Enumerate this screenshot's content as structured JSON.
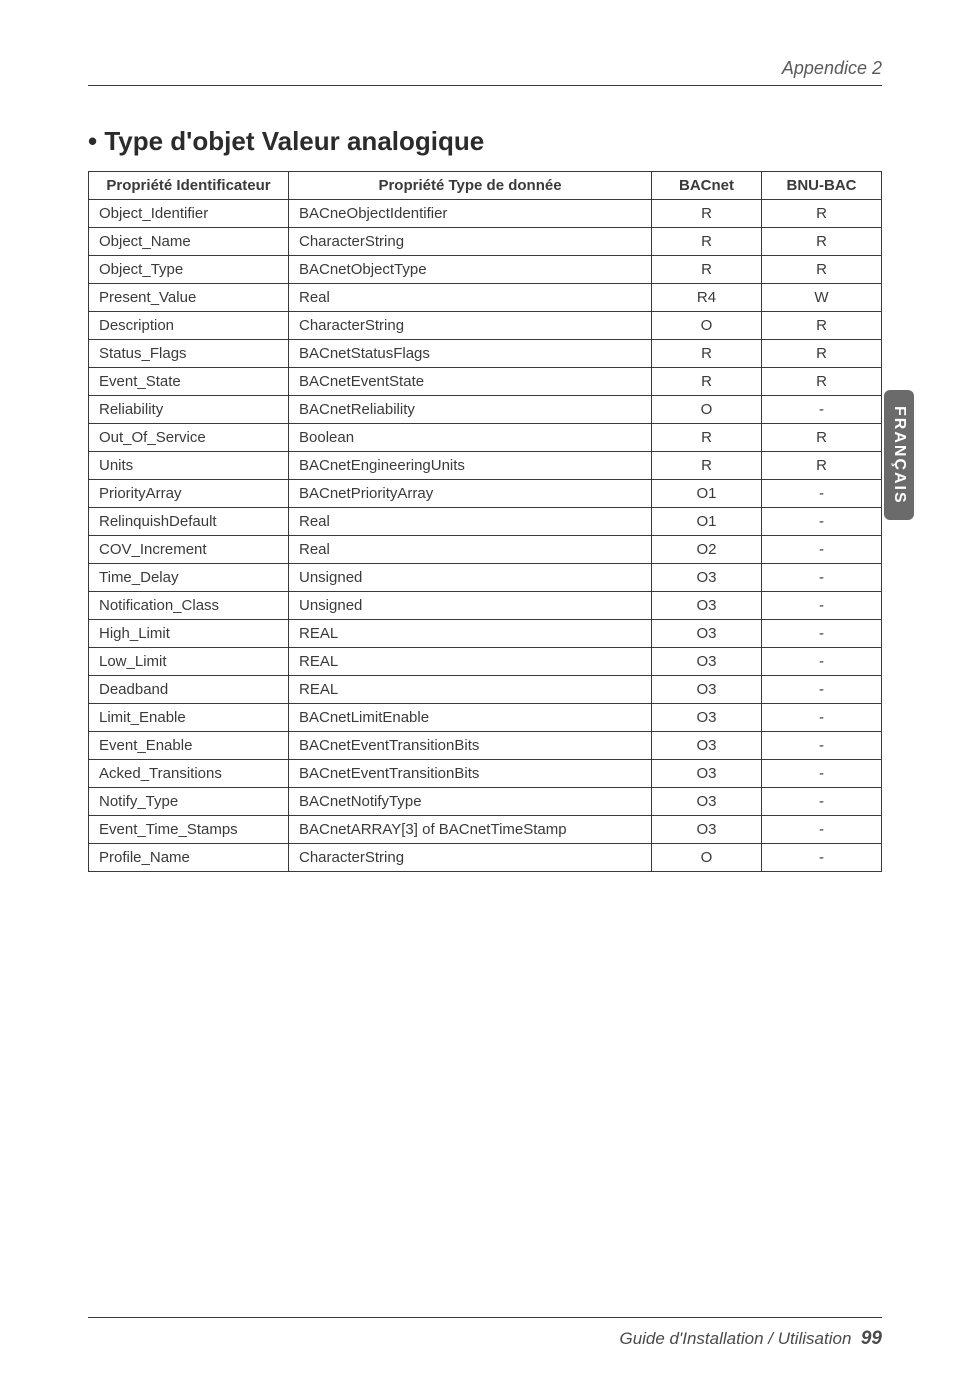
{
  "running_head": "Appendice 2",
  "section_title": "• Type d'objet Valeur analogique",
  "side_tab": "FRANÇAIS",
  "table": {
    "headers": [
      "Propriété Identificateur",
      "Propriété Type de donnée",
      "BACnet",
      "BNU-BAC"
    ],
    "rows": [
      [
        "Object_Identifier",
        "BACneObjectIdentifier",
        "R",
        "R"
      ],
      [
        "Object_Name",
        "CharacterString",
        "R",
        "R"
      ],
      [
        "Object_Type",
        "BACnetObjectType",
        "R",
        "R"
      ],
      [
        "Present_Value",
        "Real",
        "R4",
        "W"
      ],
      [
        "Description",
        "CharacterString",
        "O",
        "R"
      ],
      [
        "Status_Flags",
        "BACnetStatusFlags",
        "R",
        "R"
      ],
      [
        "Event_State",
        "BACnetEventState",
        "R",
        "R"
      ],
      [
        "Reliability",
        "BACnetReliability",
        "O",
        "-"
      ],
      [
        "Out_Of_Service",
        "Boolean",
        "R",
        "R"
      ],
      [
        "Units",
        "BACnetEngineeringUnits",
        "R",
        "R"
      ],
      [
        "PriorityArray",
        "BACnetPriorityArray",
        "O1",
        "-"
      ],
      [
        "RelinquishDefault",
        "Real",
        "O1",
        "-"
      ],
      [
        "COV_Increment",
        "Real",
        "O2",
        "-"
      ],
      [
        "Time_Delay",
        "Unsigned",
        "O3",
        "-"
      ],
      [
        "Notification_Class",
        "Unsigned",
        "O3",
        "-"
      ],
      [
        "High_Limit",
        "REAL",
        "O3",
        "-"
      ],
      [
        "Low_Limit",
        "REAL",
        "O3",
        "-"
      ],
      [
        "Deadband",
        "REAL",
        "O3",
        "-"
      ],
      [
        "Limit_Enable",
        "BACnetLimitEnable",
        "O3",
        "-"
      ],
      [
        "Event_Enable",
        "BACnetEventTransitionBits",
        "O3",
        "-"
      ],
      [
        "Acked_Transitions",
        "BACnetEventTransitionBits",
        "O3",
        "-"
      ],
      [
        "Notify_Type",
        "BACnetNotifyType",
        "O3",
        "-"
      ],
      [
        "Event_Time_Stamps",
        "BACnetARRAY[3] of BACnetTimeStamp",
        "O3",
        "-"
      ],
      [
        "Profile_Name",
        "CharacterString",
        "O",
        "-"
      ]
    ]
  },
  "footer": {
    "title": "Guide d'Installation / Utilisation",
    "page": "99"
  }
}
